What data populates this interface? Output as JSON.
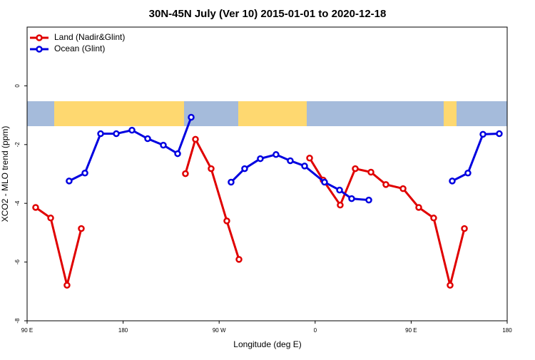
{
  "chart_data": {
    "type": "line",
    "title": "30N-45N July (Ver 10)   2015-01-01 to 2020-12-18",
    "x_label": "Longitude (deg E)",
    "y_label": "XCO2 - MLO trend (ppm)",
    "xlim": [
      90,
      540
    ],
    "ylim": [
      -8,
      2
    ],
    "xticks": [
      {
        "value": 90,
        "label": "90 E"
      },
      {
        "value": 180,
        "label": "180"
      },
      {
        "value": 270,
        "label": "90 W"
      },
      {
        "value": 360,
        "label": "0"
      },
      {
        "value": 450,
        "label": "90 E"
      },
      {
        "value": 540,
        "label": "180"
      }
    ],
    "yticks": [
      0,
      -2,
      -4,
      -6,
      -8
    ],
    "legend": "top-left",
    "grid": false,
    "series": [
      {
        "name": "Land (Nadir&Glint)",
        "color": "#e00000",
        "x": [
          98,
          112.1,
          127.4,
          140.8,
          null,
          238.4,
          247.8,
          262.5,
          277.2,
          288.6,
          null,
          354.8,
          367.5,
          383.5,
          397.6,
          412.3,
          426.3,
          442.4,
          457.1,
          471.1,
          486.5,
          499.9
        ],
        "values": [
          -4.14,
          -4.5,
          -6.79,
          -4.86,
          null,
          -2.99,
          -1.82,
          -2.82,
          -4.6,
          -5.91,
          null,
          -2.46,
          -3.21,
          -4.06,
          -2.82,
          -2.94,
          -3.36,
          -3.5,
          -4.14,
          -4.5,
          -6.79,
          -4.86
        ]
      },
      {
        "name": "Ocean (Glint)",
        "color": "#0000e0",
        "x": [
          129.4,
          144.2,
          158.9,
          173.6,
          188.3,
          203,
          217.7,
          231.1,
          243.8,
          null,
          281.2,
          293.9,
          308.6,
          323.3,
          336.7,
          350.1,
          368.8,
          382.9,
          394.2,
          410.3,
          null,
          488.5,
          503.2,
          517.3,
          532.6
        ],
        "values": [
          -3.24,
          -2.97,
          -1.63,
          -1.63,
          -1.51,
          -1.8,
          -2.02,
          -2.31,
          -1.07,
          null,
          -3.28,
          -2.82,
          -2.48,
          -2.34,
          -2.55,
          -2.73,
          -3.28,
          -3.55,
          -3.84,
          -3.89,
          null,
          -3.24,
          -2.97,
          -1.65,
          -1.63
        ]
      }
    ]
  }
}
